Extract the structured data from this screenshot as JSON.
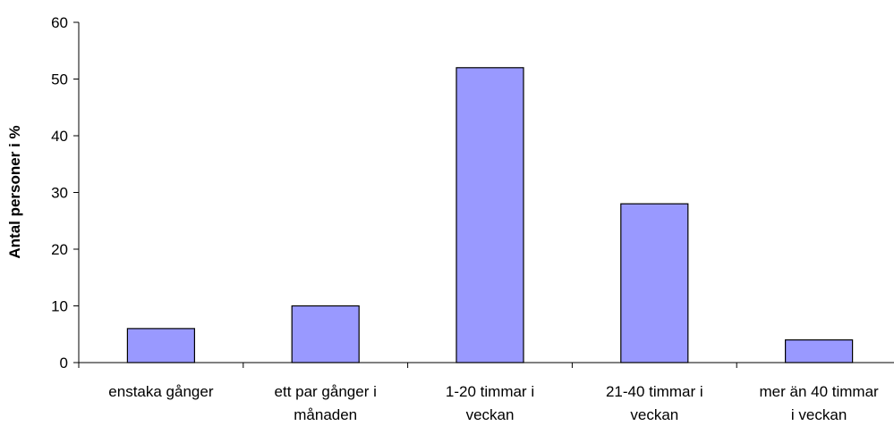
{
  "chart_data": {
    "type": "bar",
    "title": "",
    "xlabel": "",
    "ylabel": "Antal personer i %",
    "ylim": [
      0,
      60
    ],
    "yticks": [
      0,
      10,
      20,
      30,
      40,
      50,
      60
    ],
    "grid": false,
    "legend": "none",
    "bar_color": "#9999ff",
    "bar_edge_color": "#000000",
    "categories": [
      [
        "enstaka gånger"
      ],
      [
        "ett par gånger i",
        "månaden"
      ],
      [
        "1-20 timmar i",
        "veckan"
      ],
      [
        "21-40 timmar i",
        "veckan"
      ],
      [
        "mer än 40 timmar",
        "i veckan"
      ]
    ],
    "values": [
      6,
      10,
      52,
      28,
      4
    ]
  }
}
